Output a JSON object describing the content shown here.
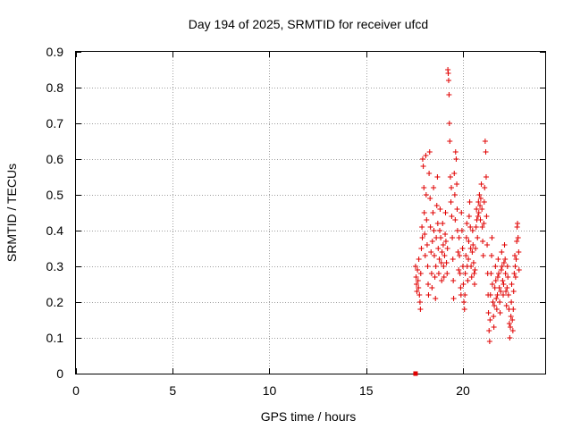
{
  "chart_data": {
    "type": "scatter",
    "title": "Day 194 of 2025, SRMTID for receiver ufcd",
    "xlabel": "GPS time / hours",
    "ylabel": "SRMTID / TECUs",
    "xlim": [
      0,
      24.25
    ],
    "ylim": [
      0,
      0.9
    ],
    "xticks": [
      0,
      5,
      10,
      15,
      20
    ],
    "yticks": [
      0,
      0.1,
      0.2,
      0.3,
      0.4,
      0.5,
      0.6,
      0.7,
      0.8,
      0.9
    ],
    "xtick_labels": [
      "0",
      "5",
      "10",
      "15",
      "20"
    ],
    "ytick_labels": [
      "0",
      "0.1",
      "0.2",
      "0.3",
      "0.4",
      "0.5",
      "0.6",
      "0.7",
      "0.8",
      "0.9"
    ],
    "grid": true,
    "marker": "+",
    "color": "#e00000",
    "zero_marker": {
      "x": 17.55,
      "y": 0
    },
    "series": [
      {
        "name": "SRMTID",
        "points": [
          [
            17.55,
            0.3
          ],
          [
            17.58,
            0.27
          ],
          [
            17.6,
            0.25
          ],
          [
            17.62,
            0.23
          ],
          [
            17.65,
            0.29
          ],
          [
            17.68,
            0.26
          ],
          [
            17.7,
            0.24
          ],
          [
            17.72,
            0.32
          ],
          [
            17.75,
            0.22
          ],
          [
            17.78,
            0.2
          ],
          [
            17.8,
            0.18
          ],
          [
            17.82,
            0.28
          ],
          [
            17.85,
            0.35
          ],
          [
            17.88,
            0.41
          ],
          [
            17.9,
            0.38
          ],
          [
            17.92,
            0.6
          ],
          [
            17.95,
            0.58
          ],
          [
            17.98,
            0.52
          ],
          [
            18.0,
            0.45
          ],
          [
            18.02,
            0.39
          ],
          [
            18.05,
            0.33
          ],
          [
            18.08,
            0.61
          ],
          [
            18.1,
            0.5
          ],
          [
            18.12,
            0.43
          ],
          [
            18.15,
            0.36
          ],
          [
            18.18,
            0.3
          ],
          [
            18.2,
            0.25
          ],
          [
            18.22,
            0.22
          ],
          [
            18.25,
            0.56
          ],
          [
            18.28,
            0.62
          ],
          [
            18.3,
            0.49
          ],
          [
            18.32,
            0.41
          ],
          [
            18.35,
            0.34
          ],
          [
            18.38,
            0.28
          ],
          [
            18.4,
            0.24
          ],
          [
            18.42,
            0.37
          ],
          [
            18.45,
            0.45
          ],
          [
            18.48,
            0.52
          ],
          [
            18.5,
            0.4
          ],
          [
            18.52,
            0.33
          ],
          [
            18.55,
            0.27
          ],
          [
            18.58,
            0.21
          ],
          [
            18.6,
            0.3
          ],
          [
            18.62,
            0.38
          ],
          [
            18.65,
            0.47
          ],
          [
            18.68,
            0.55
          ],
          [
            18.7,
            0.42
          ],
          [
            18.72,
            0.35
          ],
          [
            18.75,
            0.28
          ],
          [
            18.78,
            0.32
          ],
          [
            18.8,
            0.4
          ],
          [
            18.82,
            0.46
          ],
          [
            18.85,
            0.38
          ],
          [
            18.88,
            0.31
          ],
          [
            18.9,
            0.26
          ],
          [
            18.92,
            0.34
          ],
          [
            18.95,
            0.42
          ],
          [
            18.98,
            0.36
          ],
          [
            19.0,
            0.3
          ],
          [
            19.02,
            0.27
          ],
          [
            19.05,
            0.33
          ],
          [
            19.08,
            0.39
          ],
          [
            19.1,
            0.45
          ],
          [
            19.12,
            0.37
          ],
          [
            19.15,
            0.31
          ],
          [
            19.18,
            0.28
          ],
          [
            19.2,
            0.35
          ],
          [
            19.22,
            0.85
          ],
          [
            19.24,
            0.84
          ],
          [
            19.26,
            0.82
          ],
          [
            19.28,
            0.78
          ],
          [
            19.3,
            0.7
          ],
          [
            19.32,
            0.65
          ],
          [
            19.35,
            0.55
          ],
          [
            19.38,
            0.48
          ],
          [
            19.4,
            0.52
          ],
          [
            19.42,
            0.44
          ],
          [
            19.45,
            0.38
          ],
          [
            19.48,
            0.32
          ],
          [
            19.5,
            0.26
          ],
          [
            19.52,
            0.21
          ],
          [
            19.55,
            0.56
          ],
          [
            19.58,
            0.5
          ],
          [
            19.6,
            0.43
          ],
          [
            19.62,
            0.62
          ],
          [
            19.65,
            0.6
          ],
          [
            19.68,
            0.53
          ],
          [
            19.7,
            0.46
          ],
          [
            19.72,
            0.4
          ],
          [
            19.75,
            0.34
          ],
          [
            19.78,
            0.29
          ],
          [
            19.8,
            0.38
          ],
          [
            19.82,
            0.33
          ],
          [
            19.85,
            0.28
          ],
          [
            19.88,
            0.24
          ],
          [
            19.9,
            0.22
          ],
          [
            19.92,
            0.45
          ],
          [
            19.95,
            0.4
          ],
          [
            19.98,
            0.35
          ],
          [
            20.0,
            0.3
          ],
          [
            20.02,
            0.25
          ],
          [
            20.05,
            0.2
          ],
          [
            20.08,
            0.18
          ],
          [
            20.1,
            0.22
          ],
          [
            20.12,
            0.28
          ],
          [
            20.15,
            0.33
          ],
          [
            20.18,
            0.38
          ],
          [
            20.2,
            0.42
          ],
          [
            20.22,
            0.3
          ],
          [
            20.25,
            0.26
          ],
          [
            20.28,
            0.32
          ],
          [
            20.3,
            0.37
          ],
          [
            20.32,
            0.44
          ],
          [
            20.35,
            0.48
          ],
          [
            20.38,
            0.41
          ],
          [
            20.4,
            0.35
          ],
          [
            20.42,
            0.3
          ],
          [
            20.45,
            0.27
          ],
          [
            20.48,
            0.34
          ],
          [
            20.5,
            0.4
          ],
          [
            20.52,
            0.36
          ],
          [
            20.55,
            0.31
          ],
          [
            20.58,
            0.28
          ],
          [
            20.6,
            0.25
          ],
          [
            20.62,
            0.29
          ],
          [
            20.65,
            0.35
          ],
          [
            20.68,
            0.41
          ],
          [
            20.7,
            0.46
          ],
          [
            20.72,
            0.43
          ],
          [
            20.75,
            0.38
          ],
          [
            20.78,
            0.44
          ],
          [
            20.8,
            0.48
          ],
          [
            20.82,
            0.45
          ],
          [
            20.85,
            0.5
          ],
          [
            20.88,
            0.47
          ],
          [
            20.9,
            0.43
          ],
          [
            20.92,
            0.49
          ],
          [
            20.95,
            0.53
          ],
          [
            20.98,
            0.46
          ],
          [
            21.0,
            0.41
          ],
          [
            21.02,
            0.37
          ],
          [
            21.05,
            0.33
          ],
          [
            21.08,
            0.42
          ],
          [
            21.1,
            0.48
          ],
          [
            21.12,
            0.52
          ],
          [
            21.15,
            0.65
          ],
          [
            21.18,
            0.62
          ],
          [
            21.2,
            0.55
          ],
          [
            21.22,
            0.44
          ],
          [
            21.25,
            0.36
          ],
          [
            21.28,
            0.28
          ],
          [
            21.3,
            0.22
          ],
          [
            21.32,
            0.17
          ],
          [
            21.35,
            0.12
          ],
          [
            21.38,
            0.09
          ],
          [
            21.4,
            0.15
          ],
          [
            21.42,
            0.22
          ],
          [
            21.45,
            0.28
          ],
          [
            21.48,
            0.33
          ],
          [
            21.5,
            0.38
          ],
          [
            21.52,
            0.25
          ],
          [
            21.55,
            0.2
          ],
          [
            21.58,
            0.16
          ],
          [
            21.6,
            0.13
          ],
          [
            21.62,
            0.19
          ],
          [
            21.65,
            0.24
          ],
          [
            21.68,
            0.3
          ],
          [
            21.7,
            0.26
          ],
          [
            21.72,
            0.21
          ],
          [
            21.75,
            0.18
          ],
          [
            21.78,
            0.22
          ],
          [
            21.8,
            0.27
          ],
          [
            21.82,
            0.32
          ],
          [
            21.85,
            0.28
          ],
          [
            21.88,
            0.24
          ],
          [
            21.9,
            0.2
          ],
          [
            21.92,
            0.17
          ],
          [
            21.95,
            0.23
          ],
          [
            21.98,
            0.29
          ],
          [
            22.0,
            0.34
          ],
          [
            22.02,
            0.3
          ],
          [
            22.05,
            0.26
          ],
          [
            22.08,
            0.22
          ],
          [
            22.1,
            0.25
          ],
          [
            22.12,
            0.31
          ],
          [
            22.15,
            0.36
          ],
          [
            22.18,
            0.32
          ],
          [
            22.2,
            0.28
          ],
          [
            22.22,
            0.23
          ],
          [
            22.25,
            0.19
          ],
          [
            22.28,
            0.24
          ],
          [
            22.3,
            0.3
          ],
          [
            22.32,
            0.27
          ],
          [
            22.35,
            0.22
          ],
          [
            22.38,
            0.18
          ],
          [
            22.4,
            0.14
          ],
          [
            22.42,
            0.1
          ],
          [
            22.45,
            0.13
          ],
          [
            22.48,
            0.16
          ],
          [
            22.5,
            0.2
          ],
          [
            22.52,
            0.25
          ],
          [
            22.55,
            0.15
          ],
          [
            22.58,
            0.12
          ],
          [
            22.6,
            0.18
          ],
          [
            22.62,
            0.23
          ],
          [
            22.65,
            0.28
          ],
          [
            22.68,
            0.33
          ],
          [
            22.7,
            0.3
          ],
          [
            22.72,
            0.27
          ],
          [
            22.75,
            0.32
          ],
          [
            22.78,
            0.37
          ],
          [
            22.8,
            0.41
          ],
          [
            22.82,
            0.42
          ],
          [
            22.85,
            0.38
          ],
          [
            22.88,
            0.34
          ],
          [
            22.9,
            0.29
          ]
        ]
      }
    ]
  }
}
